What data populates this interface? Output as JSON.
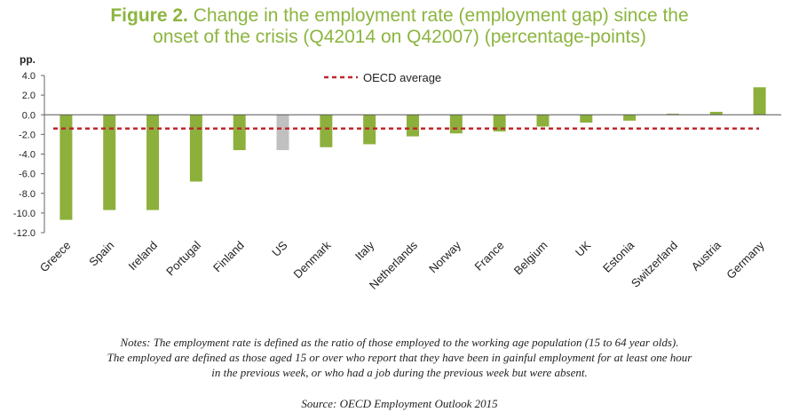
{
  "figure": {
    "label": "Figure 2.",
    "title_line1": "Change in the employment rate (employment gap) since the",
    "title_line2": "onset of the crisis (Q42014 on Q42007) (percentage-points)"
  },
  "chart_data": {
    "type": "bar",
    "ylabel": "pp.",
    "ylim": [
      -12,
      4
    ],
    "yticks": [
      "4.0",
      "2.0",
      "0.0",
      "-2.0",
      "-4.0",
      "-6.0",
      "-8.0",
      "-10.0",
      "-12.0"
    ],
    "ytick_values": [
      4,
      2,
      0,
      -2,
      -4,
      -6,
      -8,
      -10,
      -12
    ],
    "categories": [
      "Greece",
      "Spain",
      "Ireland",
      "Portugal",
      "Finland",
      "US",
      "Denmark",
      "Italy",
      "Netherlands",
      "Norway",
      "France",
      "Belgium",
      "UK",
      "Estonia",
      "Switzerland",
      "Austria",
      "Germany"
    ],
    "values": [
      -10.7,
      -9.7,
      -9.7,
      -6.8,
      -3.6,
      -3.6,
      -3.3,
      -3.0,
      -2.2,
      -1.9,
      -1.7,
      -1.2,
      -0.8,
      -0.6,
      0.1,
      0.3,
      2.8
    ],
    "highlight_category": "US",
    "reference_line": {
      "name": "OECD average",
      "value": -1.4
    },
    "legend_position": "top-center",
    "grid": false,
    "colors": {
      "bar": "#8db03c",
      "highlight": "#c0c0c0",
      "reference": "#c0262e"
    }
  },
  "notes": {
    "line1": "Notes: The employment rate is defined as the ratio of those employed to the working age population (15 to 64 year olds).",
    "line2": "The employed are defined as those aged 15 or over who report that they have been in gainful employment for at least one hour",
    "line3": "in the previous week, or who had a job during the previous week but were absent."
  },
  "source": "Source: OECD Employment Outlook 2015"
}
